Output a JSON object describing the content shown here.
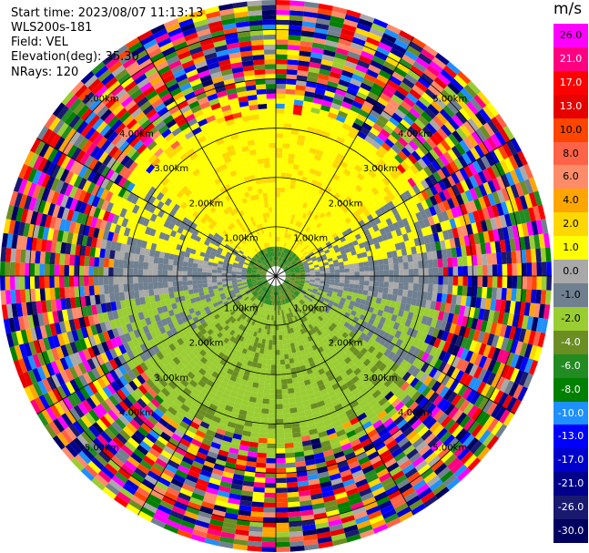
{
  "header": {
    "start_time": "Start time: 2023/08/07 11:13:13",
    "instrument": "WLS200s-181",
    "field": "Field: VEL",
    "elevation": "Elevation(deg): 35.30",
    "nrays": "NRays: 120"
  },
  "chart_data": {
    "type": "ppi",
    "field": "VEL",
    "units": "m/s",
    "elevation_deg": 35.3,
    "nrays": 120,
    "range_rings_km": [
      1.0,
      2.0,
      3.0,
      4.0,
      5.0
    ],
    "ring_labels": [
      "1.00km",
      "2.00km",
      "3.00km",
      "4.00km",
      "5.00km"
    ],
    "colorbar": {
      "vmin": -30.0,
      "vmax": 29.0,
      "ticks": [
        "26.0",
        "21.0",
        "17.0",
        "13.0",
        "10.0",
        "8.0",
        "6.0",
        "4.0",
        "2.0",
        "1.0",
        "0.0",
        "-1.0",
        "-2.0",
        "-4.0",
        "-6.0",
        "-8.0",
        "-10.0",
        "-13.0",
        "-17.0",
        "-21.0",
        "-26.0",
        "-30.0"
      ],
      "colors": [
        "#ff00ff",
        "#ff0080",
        "#ff0000",
        "#e60000",
        "#ff4500",
        "#ff6347",
        "#ff8c69",
        "#ffa500",
        "#ffd700",
        "#ffff00",
        "#a9a9a9",
        "#708090",
        "#9acd32",
        "#6b8e23",
        "#228b22",
        "#008000",
        "#1e90ff",
        "#0000ff",
        "#0000cd",
        "#00008b",
        "#191970",
        "#000060"
      ]
    }
  }
}
